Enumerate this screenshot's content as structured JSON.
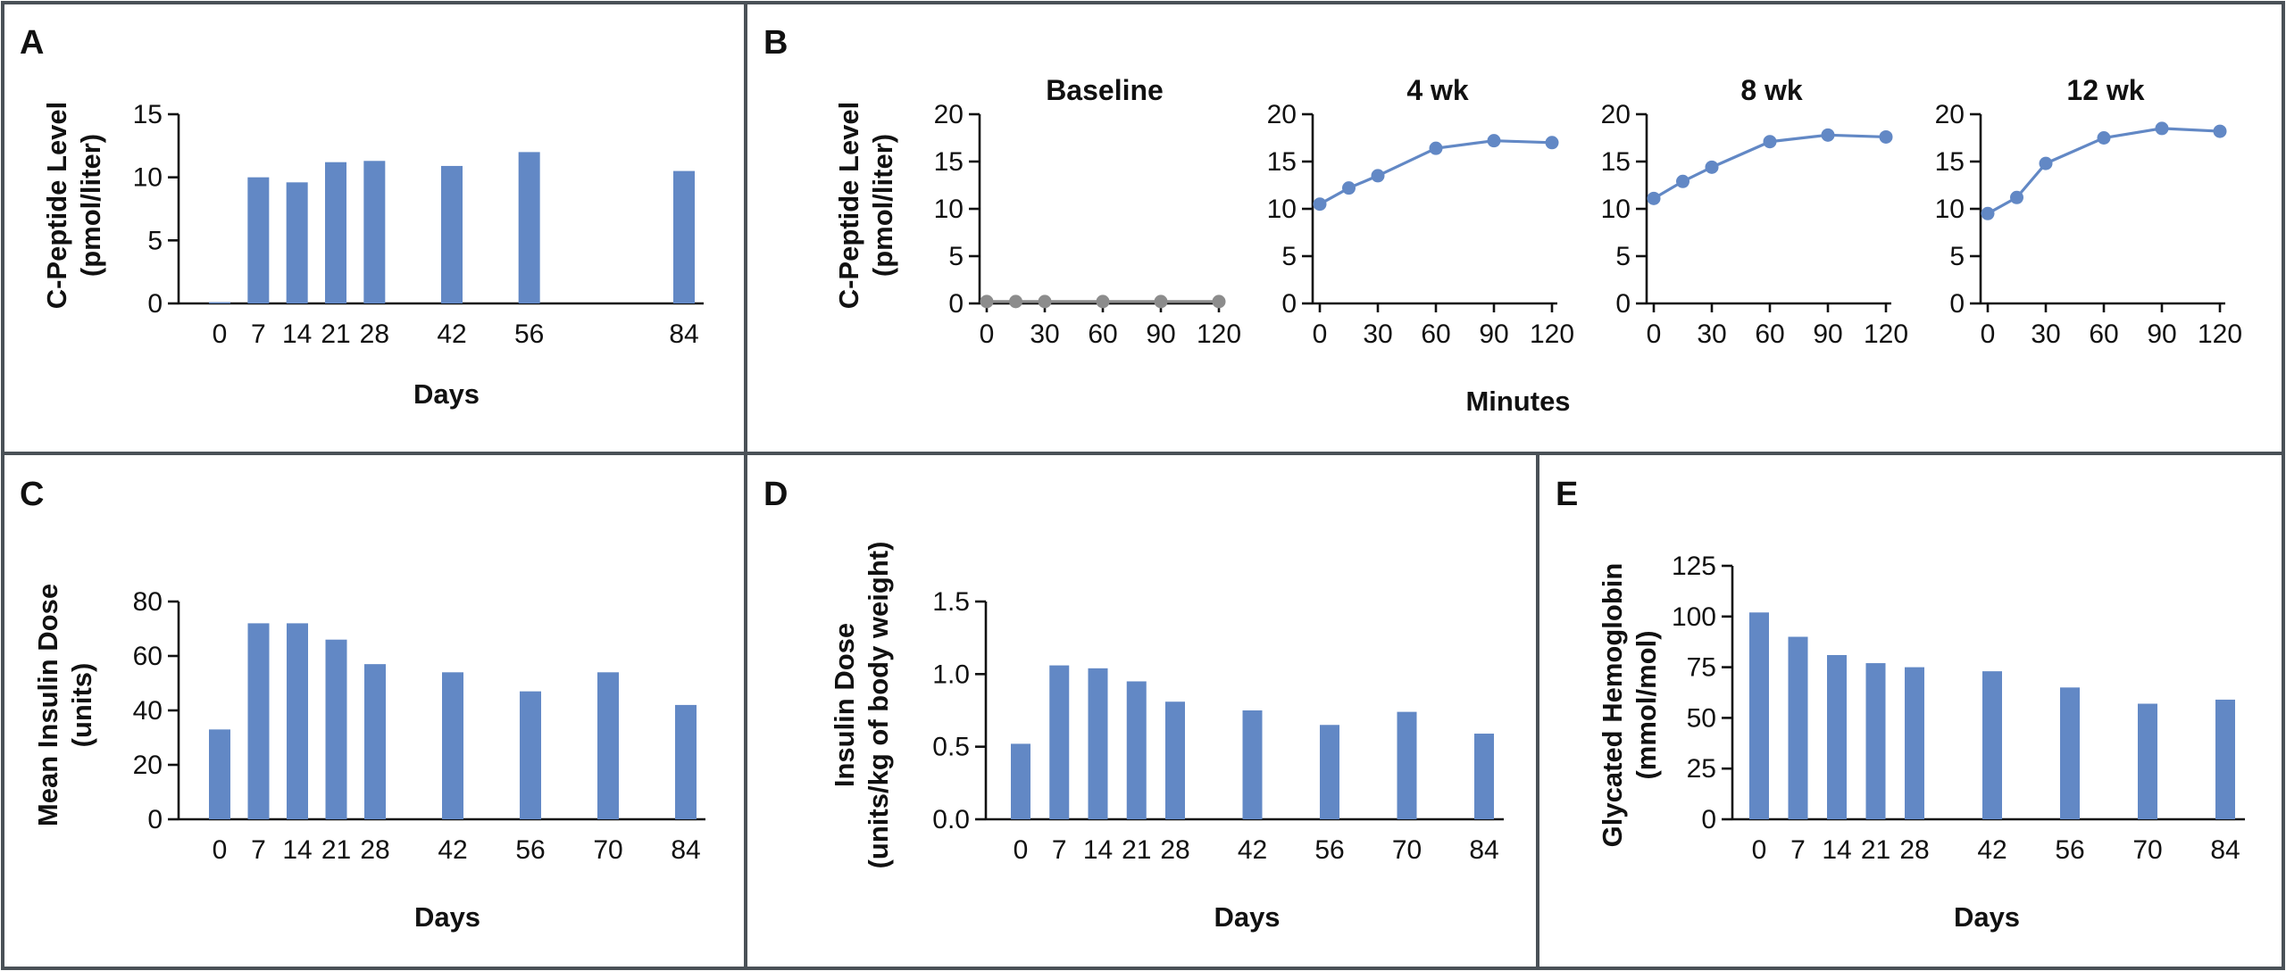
{
  "colors": {
    "bar": "#6288c5",
    "line": "#6288c5",
    "baseline_line": "#8c8c8c",
    "frame": "#4a5157"
  },
  "panels": {
    "A": {
      "label": "A"
    },
    "B": {
      "label": "B"
    },
    "C": {
      "label": "C"
    },
    "D": {
      "label": "D"
    },
    "E": {
      "label": "E"
    }
  },
  "chart_data": [
    {
      "id": "A",
      "type": "bar",
      "categories": [
        0,
        7,
        14,
        21,
        28,
        42,
        56,
        84
      ],
      "values": [
        0.1,
        10.0,
        9.6,
        11.2,
        11.3,
        10.9,
        12.0,
        10.5
      ],
      "ylabel_lines": [
        "C-Peptide Level",
        "(pmol/liter)"
      ],
      "xlabel": "Days",
      "ylim": [
        0,
        15
      ],
      "yticks": [
        0,
        5,
        10,
        15
      ],
      "xticks": [
        0,
        7,
        14,
        21,
        28,
        42,
        56,
        84
      ]
    },
    {
      "id": "B",
      "type": "line",
      "ylabel_lines": [
        "C-Peptide Level",
        "(pmol/liter)"
      ],
      "xlabel": "Minutes",
      "ylim": [
        0,
        20
      ],
      "yticks": [
        0,
        5,
        10,
        15,
        20
      ],
      "xlim": [
        0,
        120
      ],
      "xticks": [
        0,
        30,
        60,
        90,
        120
      ],
      "subplots": [
        {
          "title": "Baseline",
          "x": [
            0,
            15,
            30,
            60,
            90,
            120
          ],
          "y": [
            0.2,
            0.2,
            0.2,
            0.2,
            0.2,
            0.2
          ]
        },
        {
          "title": "4 wk",
          "x": [
            0,
            15,
            30,
            60,
            90,
            120
          ],
          "y": [
            10.5,
            12.2,
            13.5,
            16.4,
            17.2,
            17.0
          ]
        },
        {
          "title": "8 wk",
          "x": [
            0,
            15,
            30,
            60,
            90,
            120
          ],
          "y": [
            11.1,
            12.9,
            14.4,
            17.1,
            17.8,
            17.6
          ]
        },
        {
          "title": "12 wk",
          "x": [
            0,
            15,
            30,
            60,
            90,
            120
          ],
          "y": [
            9.5,
            11.2,
            14.8,
            17.5,
            18.5,
            18.2
          ]
        }
      ]
    },
    {
      "id": "C",
      "type": "bar",
      "categories": [
        0,
        7,
        14,
        21,
        28,
        42,
        56,
        70,
        84
      ],
      "values": [
        33,
        72,
        72,
        66,
        57,
        54,
        47,
        54,
        42
      ],
      "ylabel_lines": [
        "Mean Insulin Dose",
        "(units)"
      ],
      "xlabel": "Days",
      "ylim": [
        0,
        80
      ],
      "yticks": [
        0,
        20,
        40,
        60,
        80
      ],
      "xticks": [
        0,
        7,
        14,
        21,
        28,
        42,
        56,
        70,
        84
      ]
    },
    {
      "id": "D",
      "type": "bar",
      "categories": [
        0,
        7,
        14,
        21,
        28,
        42,
        56,
        70,
        84
      ],
      "values": [
        0.52,
        1.06,
        1.04,
        0.95,
        0.81,
        0.75,
        0.65,
        0.74,
        0.59
      ],
      "ylabel_lines": [
        "Insulin Dose",
        "(units/kg of body weight)"
      ],
      "xlabel": "Days",
      "ylim": [
        0,
        1.5
      ],
      "yticks": [
        "0.0",
        "0.5",
        "1.0",
        "1.5"
      ],
      "xticks": [
        0,
        7,
        14,
        21,
        28,
        42,
        56,
        70,
        84
      ]
    },
    {
      "id": "E",
      "type": "bar",
      "categories": [
        0,
        7,
        14,
        21,
        28,
        42,
        56,
        70,
        84
      ],
      "values": [
        102,
        90,
        81,
        77,
        75,
        73,
        65,
        57,
        59
      ],
      "ylabel_lines": [
        "Glycated Hemoglobin",
        "(mmol/mol)"
      ],
      "xlabel": "Days",
      "ylim": [
        0,
        125
      ],
      "yticks": [
        0,
        25,
        50,
        75,
        100,
        125
      ],
      "xticks": [
        0,
        7,
        14,
        21,
        28,
        42,
        56,
        70,
        84
      ]
    }
  ]
}
